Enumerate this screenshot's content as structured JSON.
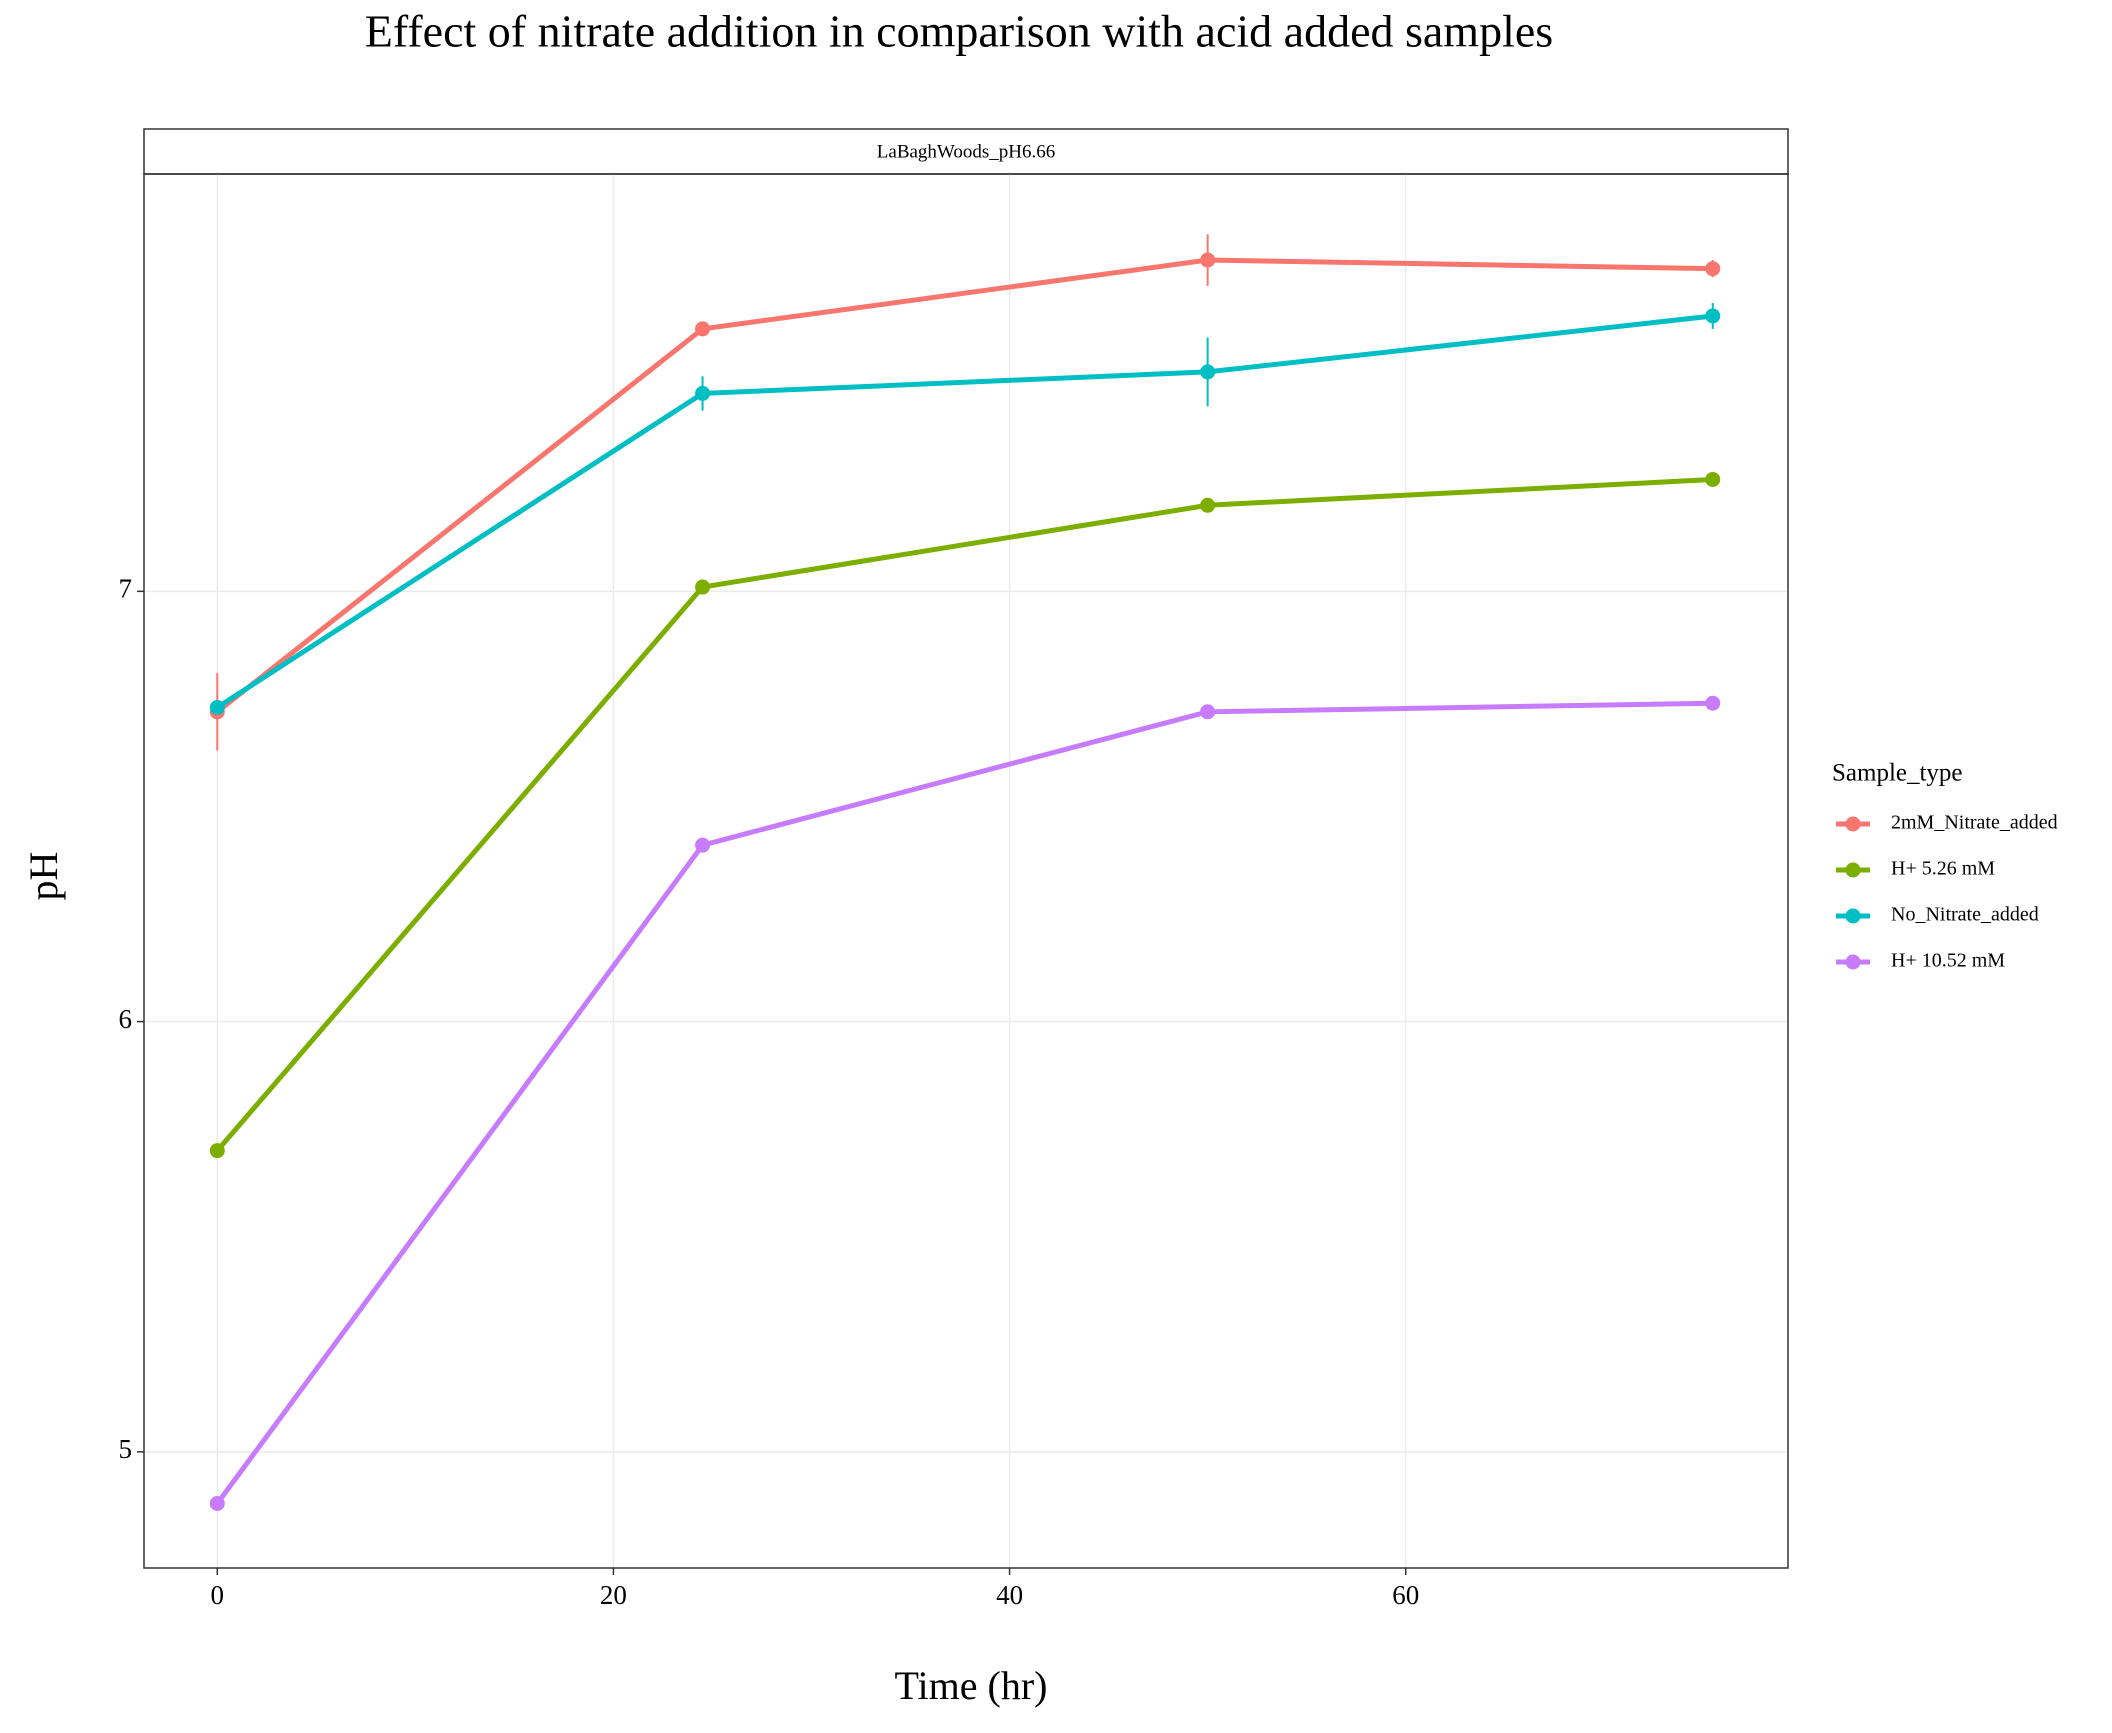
{
  "chart_data": {
    "type": "line",
    "title": "Effect of nitrate addition in comparison with acid added samples",
    "panel_title": "LaBaghWoods_pH6.66",
    "x_label": "Time (hr)",
    "y_label": "pH",
    "legend_title": "Sample_type",
    "legend": "right",
    "grid": true,
    "x": [
      0,
      24.5,
      50,
      75.5
    ],
    "xlim": [
      -3.7,
      79.3
    ],
    "ylim": [
      4.73,
      7.97
    ],
    "xticks": [
      0,
      20,
      40,
      60
    ],
    "yticks": [
      5,
      6,
      7
    ],
    "series": [
      {
        "name": "2mM_Nitrate_added",
        "color": "#F8766D",
        "values": [
          6.72,
          7.61,
          7.77,
          7.75
        ],
        "errors": [
          0.09,
          0.01,
          0.06,
          0.02
        ]
      },
      {
        "name": "H+ 5.26 mM",
        "color": "#7CAE00",
        "values": [
          5.7,
          7.01,
          7.2,
          7.26
        ],
        "errors": [
          0.01,
          0.01,
          0.01,
          0.01
        ]
      },
      {
        "name": "No_Nitrate_added",
        "color": "#00BFC4",
        "values": [
          6.73,
          7.46,
          7.51,
          7.64
        ],
        "errors": [
          0.01,
          0.04,
          0.08,
          0.03
        ]
      },
      {
        "name": "H+ 10.52 mM",
        "color": "#C77CFF",
        "values": [
          4.88,
          6.41,
          6.72,
          6.74
        ],
        "errors": [
          0.01,
          0.01,
          0.01,
          0.01
        ]
      }
    ]
  }
}
